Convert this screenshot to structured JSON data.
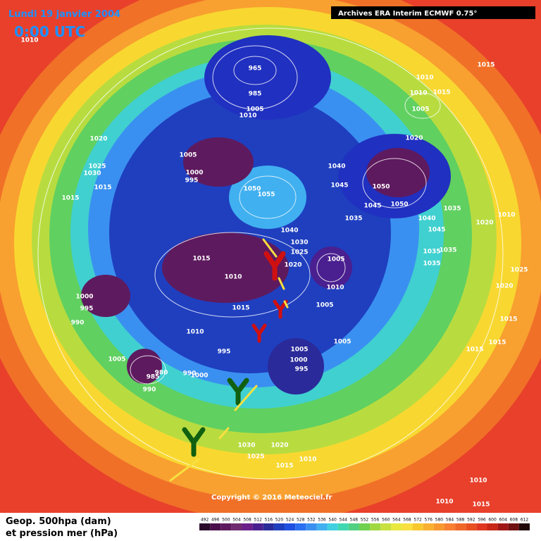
{
  "header": {
    "date": "Lundi 19 janvier 2004",
    "time": "0:00 UTC",
    "source": "Archives ERA Interim ECMWF 0.75°"
  },
  "footer": {
    "line1": "Geop. 500hpa (dam)",
    "line2": "et pression mer (hPa)",
    "copyright": "Copyright © 2016 Meteociel.fr"
  },
  "legend": {
    "ticks": [
      492,
      496,
      500,
      504,
      508,
      512,
      516,
      520,
      524,
      528,
      532,
      536,
      540,
      544,
      548,
      552,
      556,
      560,
      564,
      568,
      572,
      576,
      580,
      584,
      588,
      592,
      596,
      600,
      604,
      608,
      612
    ],
    "colors": [
      "#2a0a2a",
      "#4a0f4a",
      "#5e1a5e",
      "#702a70",
      "#6a1f8a",
      "#4a1f8f",
      "#2a2a9a",
      "#1f3fbf",
      "#2050e0",
      "#2a70f0",
      "#3a90f0",
      "#40b0f0",
      "#40d0e0",
      "#40d8b0",
      "#50d080",
      "#70d050",
      "#a0d840",
      "#c8e040",
      "#e8e840",
      "#f8e040",
      "#f8c830",
      "#f8b030",
      "#f89830",
      "#f88030",
      "#f06828",
      "#e85020",
      "#e03820",
      "#c82818",
      "#a01818",
      "#701010",
      "#200808"
    ]
  },
  "map": {
    "isobar_labels": [
      1010,
      965,
      985,
      1005,
      1010,
      1010,
      1015,
      1010,
      1015,
      1005,
      1020,
      1020,
      1005,
      1025,
      1030,
      1000,
      995,
      1040,
      1015,
      1050,
      1055,
      1045,
      1050,
      1015,
      1045,
      1050,
      1035,
      1035,
      1040,
      1020,
      1010,
      1040,
      1030,
      1045,
      1025,
      1015,
      1035,
      1035,
      1020,
      1005,
      1035,
      1025,
      1010,
      1010,
      1020,
      1000,
      995,
      1015,
      1005,
      990,
      1015,
      1010,
      1015,
      1015,
      1005,
      995,
      1005,
      1005,
      1000,
      995,
      980,
      985,
      990,
      1000,
      990,
      1030,
      1020,
      1025,
      1015,
      1010,
      1010,
      1010,
      1015
    ]
  }
}
